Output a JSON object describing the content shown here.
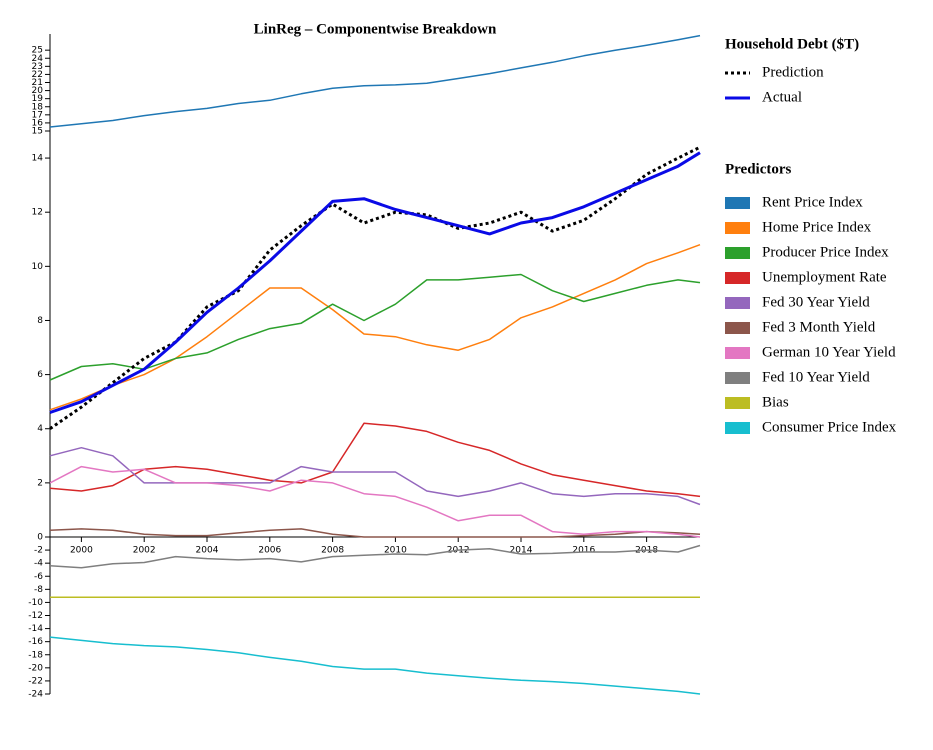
{
  "chart_data": {
    "type": "line",
    "title": "LinReg – Componentwise Breakdown",
    "x": [
      1999,
      2000,
      2001,
      2002,
      2003,
      2004,
      2005,
      2006,
      2007,
      2008,
      2009,
      2010,
      2011,
      2012,
      2013,
      2014,
      2015,
      2016,
      2017,
      2018,
      2019,
      2019.7
    ],
    "xlim": [
      1999,
      2019.7
    ],
    "xticks": [
      2000,
      2002,
      2004,
      2006,
      2008,
      2010,
      2012,
      2014,
      2016,
      2018
    ],
    "ylim": [
      -24,
      27
    ],
    "ybreaks": [
      0,
      15
    ],
    "yticks": [
      25,
      24,
      23,
      22,
      21,
      20,
      19,
      18,
      17,
      16,
      15,
      14,
      12,
      10,
      8,
      6,
      4,
      2,
      0,
      -2,
      -4,
      -6,
      -8,
      -10,
      -12,
      -14,
      -16,
      -18,
      -20,
      -22,
      -24
    ],
    "groups": [
      {
        "title": "Household Debt ($T)",
        "legend_symbol": "line",
        "series": [
          {
            "name": "Prediction",
            "color": "#000000",
            "style": "dotted",
            "values": [
              4.0,
              4.8,
              5.7,
              6.6,
              7.2,
              8.5,
              9.1,
              10.6,
              11.5,
              12.3,
              11.6,
              12.0,
              11.9,
              11.4,
              11.6,
              12.0,
              11.3,
              11.7,
              12.5,
              13.4,
              14.0,
              14.4
            ]
          },
          {
            "name": "Actual",
            "color": "#0a0ae6",
            "style": "solid",
            "values": [
              4.6,
              5.0,
              5.6,
              6.2,
              7.2,
              8.3,
              9.2,
              10.2,
              11.3,
              12.4,
              12.5,
              12.1,
              11.8,
              11.5,
              11.2,
              11.6,
              11.8,
              12.2,
              12.7,
              13.2,
              13.7,
              14.2
            ]
          }
        ]
      },
      {
        "title": "Predictors",
        "legend_symbol": "square",
        "series": [
          {
            "name": "Rent Price Index",
            "color": "#1f77b4",
            "values": [
              15.5,
              15.9,
              16.3,
              16.9,
              17.4,
              17.8,
              18.4,
              18.8,
              19.6,
              20.3,
              20.6,
              20.7,
              20.9,
              21.5,
              22.1,
              22.8,
              23.5,
              24.3,
              25.0,
              25.6,
              26.3,
              26.8
            ]
          },
          {
            "name": "Home Price Index",
            "color": "#ff7f0e",
            "values": [
              4.7,
              5.1,
              5.6,
              6.0,
              6.6,
              7.4,
              8.3,
              9.2,
              9.2,
              8.4,
              7.5,
              7.4,
              7.1,
              6.9,
              7.3,
              8.1,
              8.5,
              9.0,
              9.5,
              10.1,
              10.5,
              10.8
            ]
          },
          {
            "name": "Producer Price Index",
            "color": "#2ca02c",
            "values": [
              5.8,
              6.3,
              6.4,
              6.2,
              6.6,
              6.8,
              7.3,
              7.7,
              7.9,
              8.6,
              8.0,
              8.6,
              9.5,
              9.5,
              9.6,
              9.7,
              9.1,
              8.7,
              9.0,
              9.3,
              9.5,
              9.4
            ]
          },
          {
            "name": "Unemployment Rate",
            "color": "#d62728",
            "values": [
              1.8,
              1.7,
              1.9,
              2.5,
              2.6,
              2.5,
              2.3,
              2.1,
              2.0,
              2.4,
              4.2,
              4.1,
              3.9,
              3.5,
              3.2,
              2.7,
              2.3,
              2.1,
              1.9,
              1.7,
              1.6,
              1.5
            ]
          },
          {
            "name": "Fed 30 Year Yield",
            "color": "#9467bd",
            "values": [
              3.0,
              3.3,
              3.0,
              2.0,
              2.0,
              2.0,
              2.0,
              2.0,
              2.6,
              2.4,
              2.4,
              2.4,
              1.7,
              1.5,
              1.7,
              2.0,
              1.6,
              1.5,
              1.6,
              1.6,
              1.5,
              1.2
            ]
          },
          {
            "name": "Fed 3 Month Yield",
            "color": "#8c564b",
            "values": [
              0.25,
              0.3,
              0.25,
              0.1,
              0.05,
              0.05,
              0.15,
              0.25,
              0.3,
              0.1,
              0,
              0,
              0,
              0,
              0,
              0,
              0,
              0.05,
              0.1,
              0.2,
              0.15,
              0.1
            ]
          },
          {
            "name": "German 10 Year Yield",
            "color": "#e377c2",
            "values": [
              2.0,
              2.6,
              2.4,
              2.5,
              2.0,
              2.0,
              1.9,
              1.7,
              2.1,
              2.0,
              1.6,
              1.5,
              1.1,
              0.6,
              0.8,
              0.8,
              0.2,
              0.1,
              0.2,
              0.2,
              0.1,
              0
            ]
          },
          {
            "name": "Fed 10 Year Yield",
            "color": "#7f7f7f",
            "values": [
              -4.4,
              -4.7,
              -4.1,
              -3.9,
              -3.0,
              -3.3,
              -3.5,
              -3.3,
              -3.8,
              -3.0,
              -2.8,
              -2.6,
              -2.7,
              -2.0,
              -1.8,
              -2.6,
              -2.5,
              -2.3,
              -2.3,
              -2.0,
              -2.3,
              -1.3
            ]
          },
          {
            "name": "Bias",
            "color": "#bcbd22",
            "values": [
              -9.2,
              -9.2,
              -9.2,
              -9.2,
              -9.2,
              -9.2,
              -9.2,
              -9.2,
              -9.2,
              -9.2,
              -9.2,
              -9.2,
              -9.2,
              -9.2,
              -9.2,
              -9.2,
              -9.2,
              -9.2,
              -9.2,
              -9.2,
              -9.2,
              -9.2
            ]
          },
          {
            "name": "Consumer Price Index",
            "color": "#17becf",
            "values": [
              -15.3,
              -15.8,
              -16.3,
              -16.6,
              -16.8,
              -17.2,
              -17.7,
              -18.4,
              -19.0,
              -19.8,
              -20.2,
              -20.2,
              -20.8,
              -21.2,
              -21.6,
              -21.9,
              -22.1,
              -22.4,
              -22.8,
              -23.2,
              -23.6,
              -24.0
            ]
          }
        ]
      }
    ]
  }
}
